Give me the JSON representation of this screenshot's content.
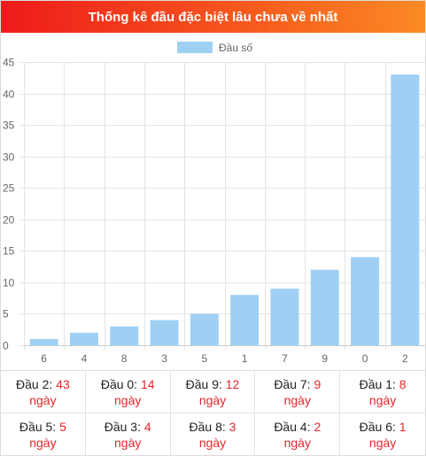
{
  "header": {
    "title": "Thống kê đầu đặc biệt lâu chưa về nhất"
  },
  "chart_data": {
    "type": "bar",
    "categories": [
      "6",
      "4",
      "8",
      "3",
      "5",
      "1",
      "7",
      "9",
      "0",
      "2"
    ],
    "series": [
      {
        "name": "Đầu số",
        "values": [
          1,
          2,
          3,
          4,
          5,
          8,
          9,
          12,
          14,
          43
        ],
        "color": "#9fd0f3"
      }
    ],
    "ylim": [
      0,
      45
    ],
    "yticks": [
      0,
      5,
      10,
      15,
      20,
      25,
      30,
      35,
      40,
      45
    ],
    "grid": true,
    "legend": "top-center"
  },
  "stats": {
    "unit": "ngày",
    "items": [
      {
        "label": "Đầu 2:",
        "value": "43"
      },
      {
        "label": "Đầu 0:",
        "value": "14"
      },
      {
        "label": "Đầu 9:",
        "value": "12"
      },
      {
        "label": "Đầu 7:",
        "value": "9"
      },
      {
        "label": "Đầu 1:",
        "value": "8"
      },
      {
        "label": "Đầu 5:",
        "value": "5"
      },
      {
        "label": "Đầu 3:",
        "value": "4"
      },
      {
        "label": "Đầu 8:",
        "value": "3"
      },
      {
        "label": "Đầu 4:",
        "value": "2"
      },
      {
        "label": "Đầu 6:",
        "value": "1"
      }
    ]
  }
}
